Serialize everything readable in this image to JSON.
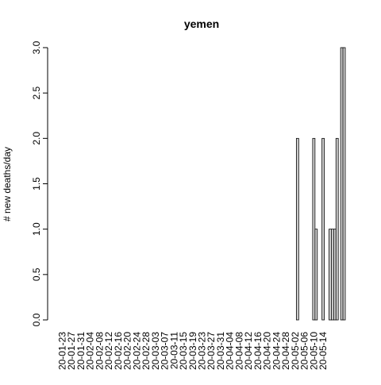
{
  "chart_data": {
    "type": "bar",
    "title": "yemen",
    "xlabel": "",
    "ylabel": "# new deaths/day",
    "ylim": [
      0,
      3
    ],
    "yticks": [
      "0.0",
      "0.5",
      "1.0",
      "1.5",
      "2.0",
      "2.5",
      "3.0"
    ],
    "xtick_labels": [
      "20-01-23",
      "20-01-27",
      "20-01-31",
      "20-02-04",
      "20-02-08",
      "20-02-12",
      "20-02-16",
      "20-02-20",
      "20-02-24",
      "20-02-28",
      "20-03-03",
      "20-03-07",
      "20-03-11",
      "20-03-15",
      "20-03-19",
      "20-03-23",
      "20-03-27",
      "20-03-31",
      "20-04-04",
      "20-04-08",
      "20-04-12",
      "20-04-16",
      "20-04-20",
      "20-04-24",
      "20-04-28",
      "20-05-02",
      "20-05-06",
      "20-05-10",
      "20-05-14"
    ],
    "start_date": "2020-01-22",
    "values": [
      0,
      0,
      0,
      0,
      0,
      0,
      0,
      0,
      0,
      0,
      0,
      0,
      0,
      0,
      0,
      0,
      0,
      0,
      0,
      0,
      0,
      0,
      0,
      0,
      0,
      0,
      0,
      0,
      0,
      0,
      0,
      0,
      0,
      0,
      0,
      0,
      0,
      0,
      0,
      0,
      0,
      0,
      0,
      0,
      0,
      0,
      0,
      0,
      0,
      0,
      0,
      0,
      0,
      0,
      0,
      0,
      0,
      0,
      0,
      0,
      0,
      0,
      0,
      0,
      0,
      0,
      0,
      0,
      0,
      0,
      0,
      0,
      0,
      0,
      0,
      0,
      0,
      0,
      0,
      0,
      0,
      0,
      0,
      0,
      0,
      0,
      0,
      0,
      0,
      0,
      0,
      0,
      0,
      0,
      0,
      0,
      0,
      0,
      0,
      0,
      0,
      0,
      2,
      0,
      0,
      0,
      0,
      0,
      0,
      2,
      1,
      0,
      0,
      2,
      0,
      0,
      1,
      1,
      1,
      2,
      0,
      3,
      3
    ],
    "grid": false,
    "legend": "none",
    "bar_fill": "#d3d3d3",
    "bar_stroke": "#000000"
  }
}
